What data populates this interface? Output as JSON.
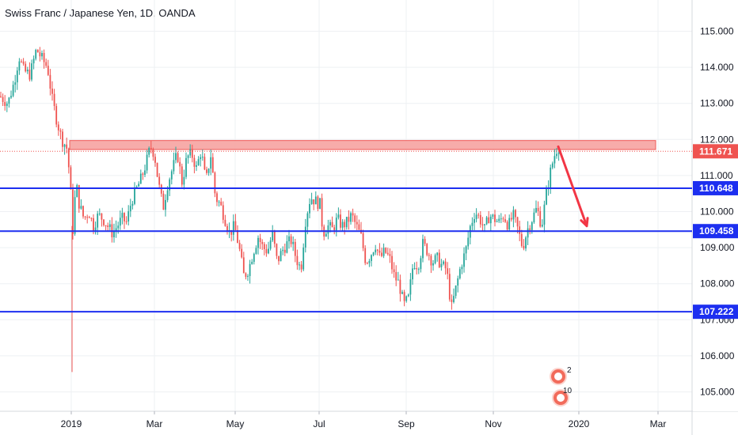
{
  "title": "Swiss Franc / Japanese Yen, 1D, OANDA",
  "colors": {
    "up": "#26a69a",
    "down": "#ef5350",
    "level_line": "#1d2ff0",
    "zone_fill": "#f7a8a6",
    "zone_border": "#ef5350",
    "arrow": "#f23645",
    "grid": "#eef0f3"
  },
  "badges": [
    {
      "icon": "plus-circle-icon",
      "count": "2"
    },
    {
      "icon": "idea-badge-icon",
      "count": "10"
    }
  ],
  "chart_data": {
    "type": "candlestick",
    "title": "Swiss Franc / Japanese Yen, 1D, OANDA",
    "ylim": [
      104.6,
      115.5
    ],
    "x_tick_labels": [
      "2019",
      "Mar",
      "May",
      "Jul",
      "Sep",
      "Nov",
      "2020",
      "Mar"
    ],
    "y_tick_labels": [
      "105.000",
      "106.000",
      "107.000",
      "108.000",
      "109.000",
      "110.000",
      "111.000",
      "112.000",
      "113.000",
      "114.000",
      "115.000"
    ],
    "y_ticks": [
      105,
      106,
      107,
      108,
      109,
      110,
      111,
      112,
      113,
      114,
      115
    ],
    "current_price": {
      "value": 111.671,
      "label": "111.671"
    },
    "horizontal_levels": [
      {
        "value": 110.648,
        "label": "110.648"
      },
      {
        "value": 109.458,
        "label": "109.458"
      },
      {
        "value": 107.222,
        "label": "107.222"
      }
    ],
    "resistance_zone": {
      "from": 111.72,
      "to": 111.97
    },
    "arrow": {
      "from_price": 111.8,
      "to_price": 109.6
    },
    "spike_low": 105.55,
    "price_path": [
      [
        0,
        113.2
      ],
      [
        10,
        113.0
      ],
      [
        18,
        113.6
      ],
      [
        24,
        114.3
      ],
      [
        30,
        113.9
      ],
      [
        38,
        113.8
      ],
      [
        46,
        114.5
      ],
      [
        54,
        114.2
      ],
      [
        60,
        114.0
      ],
      [
        66,
        113.1
      ],
      [
        72,
        112.5
      ],
      [
        78,
        112.0
      ],
      [
        84,
        111.8
      ],
      [
        88,
        111.0
      ],
      [
        92,
        109.5
      ],
      [
        96,
        110.8
      ],
      [
        100,
        110.2
      ],
      [
        106,
        109.8
      ],
      [
        112,
        110.0
      ],
      [
        118,
        109.6
      ],
      [
        124,
        109.9
      ],
      [
        130,
        109.8
      ],
      [
        136,
        109.6
      ],
      [
        142,
        109.4
      ],
      [
        148,
        109.6
      ],
      [
        154,
        109.8
      ],
      [
        160,
        109.7
      ],
      [
        166,
        110.3
      ],
      [
        172,
        110.6
      ],
      [
        178,
        110.9
      ],
      [
        184,
        111.3
      ],
      [
        190,
        111.8
      ],
      [
        195,
        111.6
      ],
      [
        200,
        110.8
      ],
      [
        206,
        110.1
      ],
      [
        212,
        110.8
      ],
      [
        218,
        111.2
      ],
      [
        224,
        111.6
      ],
      [
        230,
        110.8
      ],
      [
        236,
        111.5
      ],
      [
        242,
        111.6
      ],
      [
        248,
        111.2
      ],
      [
        254,
        111.7
      ],
      [
        260,
        110.8
      ],
      [
        266,
        111.6
      ],
      [
        272,
        110.4
      ],
      [
        278,
        110.2
      ],
      [
        284,
        109.8
      ],
      [
        290,
        109.4
      ],
      [
        296,
        109.6
      ],
      [
        302,
        109.0
      ],
      [
        308,
        108.2
      ],
      [
        314,
        108.4
      ],
      [
        320,
        108.9
      ],
      [
        326,
        109.3
      ],
      [
        332,
        109.0
      ],
      [
        338,
        108.9
      ],
      [
        344,
        109.4
      ],
      [
        350,
        108.6
      ],
      [
        356,
        108.9
      ],
      [
        362,
        109.1
      ],
      [
        368,
        109.2
      ],
      [
        374,
        108.7
      ],
      [
        380,
        108.4
      ],
      [
        386,
        109.8
      ],
      [
        392,
        110.4
      ],
      [
        398,
        110.3
      ],
      [
        404,
        110.2
      ],
      [
        408,
        109.4
      ],
      [
        414,
        109.6
      ],
      [
        420,
        109.5
      ],
      [
        426,
        109.8
      ],
      [
        432,
        109.6
      ],
      [
        438,
        109.7
      ],
      [
        444,
        109.9
      ],
      [
        450,
        109.6
      ],
      [
        456,
        109.3
      ],
      [
        462,
        108.6
      ],
      [
        468,
        108.8
      ],
      [
        474,
        109.1
      ],
      [
        480,
        108.7
      ],
      [
        486,
        108.9
      ],
      [
        492,
        108.7
      ],
      [
        498,
        108.2
      ],
      [
        504,
        108.0
      ],
      [
        510,
        107.4
      ],
      [
        516,
        107.6
      ],
      [
        522,
        108.6
      ],
      [
        528,
        108.5
      ],
      [
        534,
        109.1
      ],
      [
        540,
        108.9
      ],
      [
        546,
        108.6
      ],
      [
        552,
        108.7
      ],
      [
        558,
        108.5
      ],
      [
        564,
        108.4
      ],
      [
        570,
        107.3
      ],
      [
        576,
        107.9
      ],
      [
        582,
        108.5
      ],
      [
        588,
        108.9
      ],
      [
        594,
        109.6
      ],
      [
        600,
        110.0
      ],
      [
        606,
        109.8
      ],
      [
        612,
        109.5
      ],
      [
        618,
        109.9
      ],
      [
        624,
        109.8
      ],
      [
        630,
        109.7
      ],
      [
        636,
        109.9
      ],
      [
        642,
        109.6
      ],
      [
        648,
        109.9
      ],
      [
        654,
        109.5
      ],
      [
        660,
        109.0
      ],
      [
        666,
        109.5
      ],
      [
        672,
        109.8
      ],
      [
        678,
        110.1
      ],
      [
        684,
        109.6
      ],
      [
        690,
        110.5
      ],
      [
        696,
        111.2
      ],
      [
        702,
        111.7
      ],
      [
        706,
        111.8
      ]
    ]
  }
}
